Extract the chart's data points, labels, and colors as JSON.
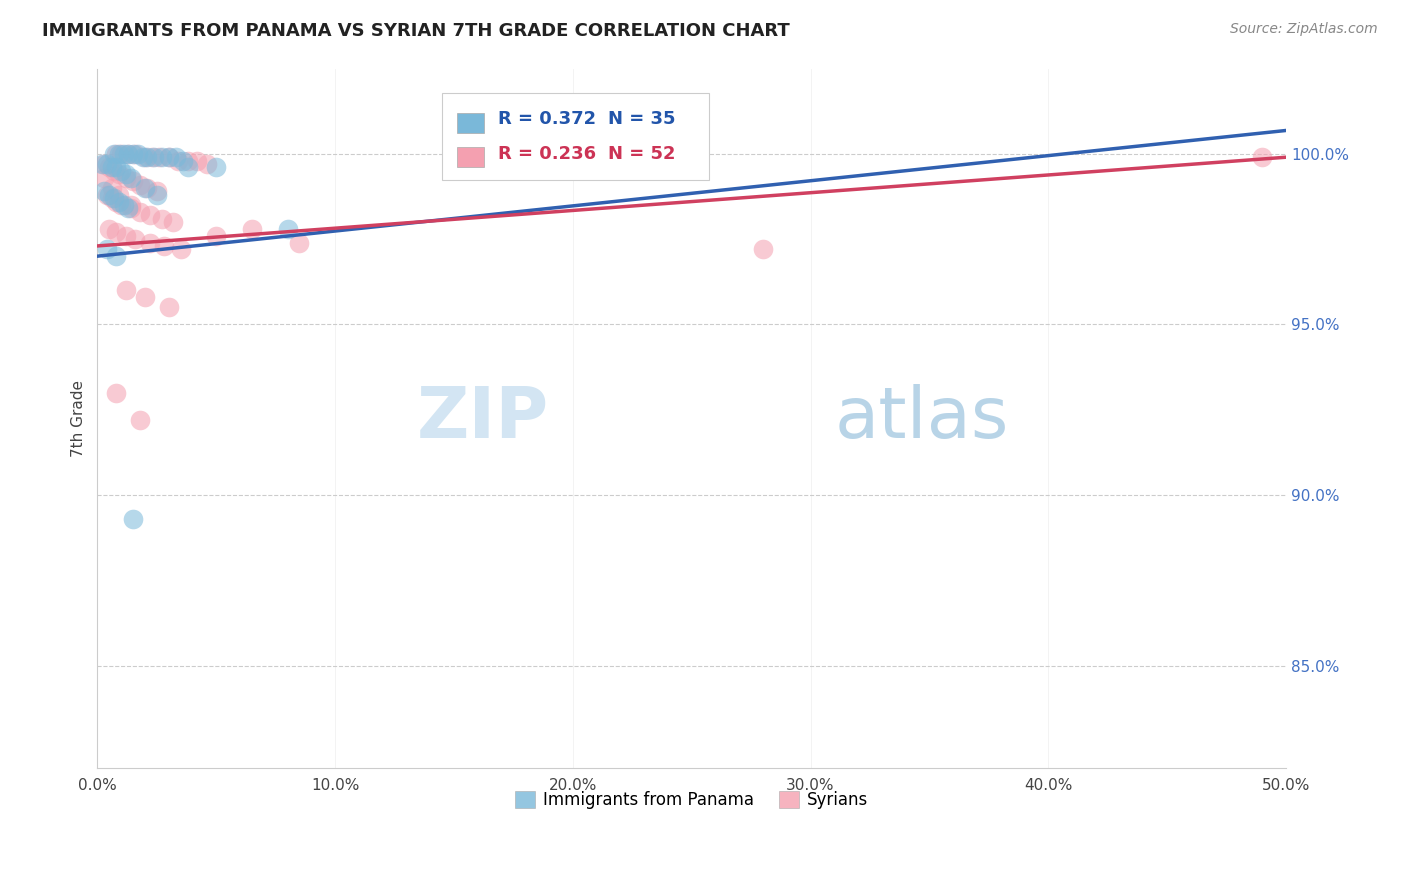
{
  "title": "IMMIGRANTS FROM PANAMA VS SYRIAN 7TH GRADE CORRELATION CHART",
  "source": "Source: ZipAtlas.com",
  "ylabel": "7th Grade",
  "ylabel_right_labels": [
    "100.0%",
    "95.0%",
    "90.0%",
    "85.0%"
  ],
  "ylabel_right_values": [
    1.0,
    0.95,
    0.9,
    0.85
  ],
  "xlim": [
    0.0,
    0.5
  ],
  "ylim": [
    0.82,
    1.025
  ],
  "legend_r1": "R = 0.372",
  "legend_n1": "N = 35",
  "legend_r2": "R = 0.236",
  "legend_n2": "N = 52",
  "blue_color": "#7ab8d9",
  "pink_color": "#f4a0b0",
  "blue_line_color": "#3060b0",
  "pink_line_color": "#d04060",
  "watermark_zip": "ZIP",
  "watermark_atlas": "atlas",
  "grid_color": "#cccccc",
  "background_color": "#ffffff",
  "xtick_labels": [
    "0.0%",
    "10.0%",
    "20.0%",
    "30.0%",
    "40.0%",
    "50.0%"
  ],
  "xtick_values": [
    0.0,
    0.1,
    0.2,
    0.3,
    0.4,
    0.5
  ]
}
